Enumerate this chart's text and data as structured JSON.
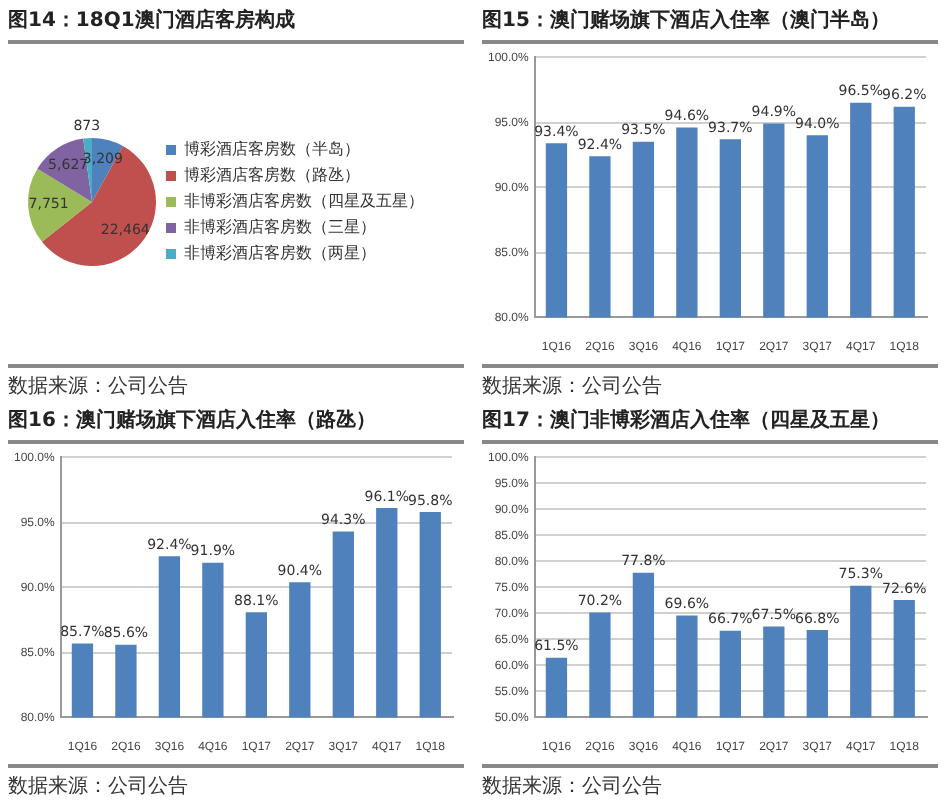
{
  "chart_data": [
    {
      "type": "pie",
      "title": "图14：18Q1澳门酒店客房构成",
      "categories": [
        "博彩酒店客房数（半岛）",
        "博彩酒店客房数（路氹）",
        "非博彩酒店客房数（四星及五星）",
        "非博彩酒店客房数（三星）",
        "非博彩酒店客房数（两星）"
      ],
      "values": [
        3209,
        22464,
        7751,
        5627,
        873
      ],
      "colors": [
        "#4f81bd",
        "#c0504d",
        "#9bbb59",
        "#8064a2",
        "#4bacc6"
      ],
      "value_labels": [
        "3,209",
        "22,464",
        "7,751",
        "5,627",
        "873"
      ],
      "legend": "right",
      "annotations": [
        "数据来源：公司公告"
      ]
    },
    {
      "type": "bar",
      "title": "图15：澳门赌场旗下酒店入住率（澳门半岛）",
      "categories": [
        "1Q16",
        "2Q16",
        "3Q16",
        "4Q16",
        "1Q17",
        "2Q17",
        "3Q17",
        "4Q17",
        "1Q18"
      ],
      "values": [
        93.4,
        92.4,
        93.5,
        94.6,
        93.7,
        94.9,
        94.0,
        96.5,
        96.2
      ],
      "color": "#4f81bd",
      "value_labels": [
        "93.4%",
        "92.4%",
        "93.5%",
        "94.6%",
        "93.7%",
        "94.9%",
        "94.0%",
        "96.5%",
        "96.2%"
      ],
      "ylim": [
        80,
        100
      ],
      "yticks": [
        {
          "value": 80,
          "label": "80.0%"
        },
        {
          "value": 85,
          "label": "85.0%"
        },
        {
          "value": 90,
          "label": "90.0%"
        },
        {
          "value": 95,
          "label": "95.0%"
        },
        {
          "value": 100,
          "label": "100.0%"
        }
      ],
      "grid": "y",
      "annotations": [
        "数据来源：公司公告"
      ]
    },
    {
      "type": "bar",
      "title": "图16：澳门赌场旗下酒店入住率（路氹）",
      "categories": [
        "1Q16",
        "2Q16",
        "3Q16",
        "4Q16",
        "1Q17",
        "2Q17",
        "3Q17",
        "4Q17",
        "1Q18"
      ],
      "values": [
        85.7,
        85.6,
        92.4,
        91.9,
        88.1,
        90.4,
        94.3,
        96.1,
        95.8
      ],
      "color": "#4f81bd",
      "value_labels": [
        "85.7%",
        "85.6%",
        "92.4%",
        "91.9%",
        "88.1%",
        "90.4%",
        "94.3%",
        "96.1%",
        "95.8%"
      ],
      "ylim": [
        80,
        100
      ],
      "yticks": [
        {
          "value": 80,
          "label": "80.0%"
        },
        {
          "value": 85,
          "label": "85.0%"
        },
        {
          "value": 90,
          "label": "90.0%"
        },
        {
          "value": 95,
          "label": "95.0%"
        },
        {
          "value": 100,
          "label": "100.0%"
        }
      ],
      "grid": "y",
      "annotations": [
        "数据来源：公司公告"
      ]
    },
    {
      "type": "bar",
      "title": "图17：澳门非博彩酒店入住率（四星及五星）",
      "categories": [
        "1Q16",
        "2Q16",
        "3Q16",
        "4Q16",
        "1Q17",
        "2Q17",
        "3Q17",
        "4Q17",
        "1Q18"
      ],
      "values": [
        61.5,
        70.2,
        77.8,
        69.6,
        66.7,
        67.5,
        66.8,
        75.3,
        72.6
      ],
      "color": "#4f81bd",
      "value_labels": [
        "61.5%",
        "70.2%",
        "77.8%",
        "69.6%",
        "66.7%",
        "67.5%",
        "66.8%",
        "75.3%",
        "72.6%"
      ],
      "ylim": [
        50,
        100
      ],
      "yticks": [
        {
          "value": 50,
          "label": "50.0%"
        },
        {
          "value": 55,
          "label": "55.0%"
        },
        {
          "value": 60,
          "label": "60.0%"
        },
        {
          "value": 65,
          "label": "65.0%"
        },
        {
          "value": 70,
          "label": "70.0%"
        },
        {
          "value": 75,
          "label": "75.0%"
        },
        {
          "value": 80,
          "label": "80.0%"
        },
        {
          "value": 85,
          "label": "85.0%"
        },
        {
          "value": 90,
          "label": "90.0%"
        },
        {
          "value": 95,
          "label": "95.0%"
        },
        {
          "value": 100,
          "label": "100.0%"
        }
      ],
      "grid": "y",
      "annotations": [
        "数据来源：公司公告"
      ]
    }
  ]
}
